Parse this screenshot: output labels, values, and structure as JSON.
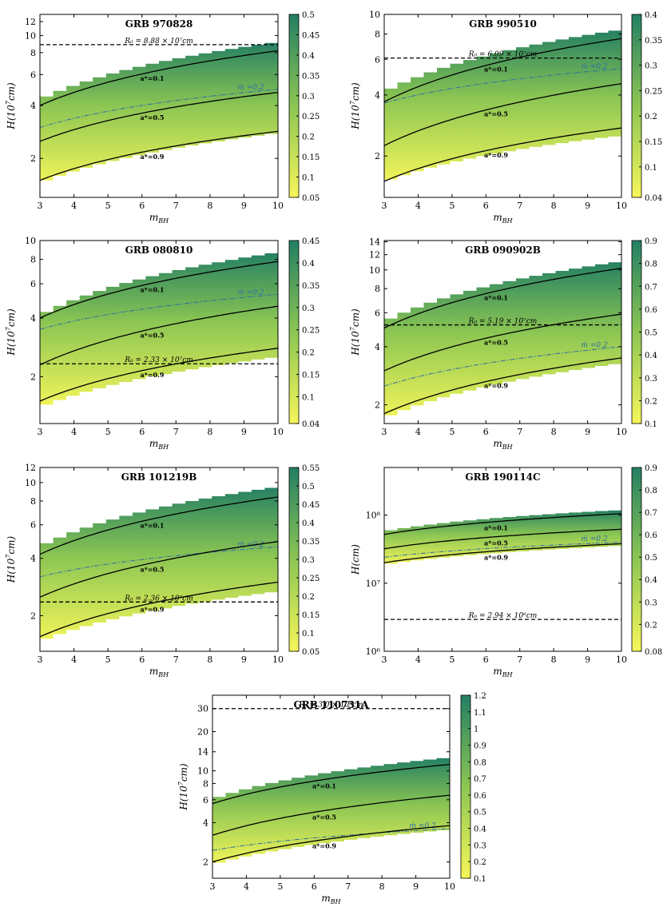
{
  "colors": {
    "high": "#237f63",
    "mid": "#8cc653",
    "low": "#f6f65a",
    "mdot_line": "#2e6da4"
  },
  "chart_data": [
    {
      "type": "area",
      "title": "GRB 970828",
      "xlabel": "m_BH",
      "ylabel": "H(10^7cm)",
      "xlim": [
        3,
        10
      ],
      "ylim": [
        1.2,
        13.2
      ],
      "yscale": "log",
      "yticks": [
        2,
        4,
        6,
        8,
        10,
        12
      ],
      "colorbar": {
        "min": 0.05,
        "max": 0.5,
        "ticks": [
          "0.05",
          "0.1",
          "0.15",
          "0.2",
          "0.25",
          "0.3",
          "0.35",
          "0.4",
          "0.45",
          "0.5"
        ]
      },
      "band": {
        "x": [
          3,
          10
        ],
        "top": [
          4.5,
          9.3
        ],
        "bottom": [
          1.4,
          2.75
        ]
      },
      "series": [
        {
          "name": "a*=0.1",
          "label": "a*=0.1",
          "y0": 4.0,
          "y1": 8.2,
          "lx": 6.3
        },
        {
          "name": "a*=0.5",
          "label": "a*=0.5",
          "y0": 2.5,
          "y1": 4.75,
          "lx": 6.3
        },
        {
          "name": "a*=0.9",
          "label": "a*=0.9",
          "y0": 1.5,
          "y1": 2.85,
          "lx": 6.3
        }
      ],
      "mdot": {
        "label": "ṁ =0.2",
        "y0": 3.0,
        "y1": 4.95,
        "lx": 9.2
      },
      "r0": {
        "value": 8.88,
        "label": "R₀ = 8.88 × 10⁷cm",
        "lx": 6.5
      }
    },
    {
      "type": "area",
      "title": "GRB 990510",
      "xlabel": "m_BH",
      "ylabel": "H(10^7cm)",
      "xlim": [
        3,
        10
      ],
      "ylim": [
        1.25,
        10
      ],
      "yscale": "log",
      "yticks": [
        2,
        4,
        6,
        8,
        10
      ],
      "colorbar": {
        "min": 0.04,
        "max": 0.4,
        "ticks": [
          "0.04",
          "0.1",
          "0.15",
          "0.2",
          "0.25",
          "0.3",
          "0.35",
          "0.4"
        ]
      },
      "band": {
        "x": [
          3,
          10
        ],
        "top": [
          4.3,
          8.5
        ],
        "bottom": [
          1.45,
          2.5
        ]
      },
      "series": [
        {
          "name": "a*=0.1",
          "label": "a*=0.1",
          "y0": 3.7,
          "y1": 7.6,
          "lx": 6.3
        },
        {
          "name": "a*=0.5",
          "label": "a*=0.5",
          "y0": 2.25,
          "y1": 4.55,
          "lx": 6.3
        },
        {
          "name": "a*=0.9",
          "label": "a*=0.9",
          "y0": 1.5,
          "y1": 2.75,
          "lx": 6.3
        }
      ],
      "mdot": {
        "label": "ṁ =0.2",
        "y0": 3.65,
        "y1": 5.4,
        "lx": 9.2
      },
      "r0": {
        "value": 6.09,
        "label": "R₀ = 6.09 × 10⁷cm",
        "lx": 6.5
      }
    },
    {
      "type": "area",
      "title": "GRB 080810",
      "xlabel": "m_BH",
      "ylabel": "H(10^7cm)",
      "xlim": [
        3,
        10
      ],
      "ylim": [
        1.15,
        10
      ],
      "yscale": "log",
      "yticks": [
        2,
        4,
        6,
        8,
        10
      ],
      "colorbar": {
        "min": 0.04,
        "max": 0.45,
        "ticks": [
          "0.04",
          "0.1",
          "0.15",
          "0.2",
          "0.25",
          "0.3",
          "0.35",
          "0.4",
          "0.45"
        ]
      },
      "band": {
        "x": [
          3,
          10
        ],
        "top": [
          4.3,
          8.8
        ],
        "bottom": [
          1.35,
          2.5
        ]
      },
      "series": [
        {
          "name": "a*=0.1",
          "label": "a*=0.1",
          "y0": 4.0,
          "y1": 7.8,
          "lx": 6.3
        },
        {
          "name": "a*=0.5",
          "label": "a*=0.5",
          "y0": 2.3,
          "y1": 4.6,
          "lx": 6.3
        },
        {
          "name": "a*=0.9",
          "label": "a*=0.9",
          "y0": 1.5,
          "y1": 2.8,
          "lx": 6.3
        }
      ],
      "mdot": {
        "label": "ṁ =0.2",
        "y0": 3.5,
        "y1": 5.3,
        "lx": 9.2
      },
      "r0": {
        "value": 2.33,
        "label": "R₀ = 2.33 × 10⁷cm",
        "lx": 6.5
      }
    },
    {
      "type": "area",
      "title": "GRB 090902B",
      "xlabel": "m_BH",
      "ylabel": "H(10^7cm)",
      "xlim": [
        3,
        10
      ],
      "ylim": [
        1.6,
        14.2
      ],
      "yscale": "log",
      "yticks": [
        2,
        4,
        6,
        8,
        10,
        12,
        14
      ],
      "colorbar": {
        "min": 0.1,
        "max": 0.9,
        "ticks": [
          "0.1",
          "0.2",
          "0.3",
          "0.4",
          "0.5",
          "0.6",
          "0.7",
          "0.8",
          "0.9"
        ]
      },
      "band": {
        "x": [
          3,
          10
        ],
        "top": [
          5.6,
          11.2
        ],
        "bottom": [
          1.65,
          3.25
        ]
      },
      "series": [
        {
          "name": "a*=0.1",
          "label": "a*=0.1",
          "y0": 5.0,
          "y1": 10.2,
          "lx": 6.3
        },
        {
          "name": "a*=0.5",
          "label": "a*=0.5",
          "y0": 3.0,
          "y1": 5.9,
          "lx": 6.3
        },
        {
          "name": "a*=0.9",
          "label": "a*=0.9",
          "y0": 1.8,
          "y1": 3.5,
          "lx": 6.3
        }
      ],
      "mdot": {
        "label": "ṁ =0.2",
        "y0": 2.5,
        "y1": 4.0,
        "lx": 9.2
      },
      "r0": {
        "value": 5.19,
        "label": "R₀ = 5.19 × 10⁷cm",
        "lx": 6.5
      }
    },
    {
      "type": "area",
      "title": "GRB 101219B",
      "xlabel": "m_BH",
      "ylabel": "H(10^7cm)",
      "xlim": [
        3,
        10
      ],
      "ylim": [
        1.3,
        12
      ],
      "yscale": "log",
      "yticks": [
        2,
        4,
        6,
        8,
        10,
        12
      ],
      "colorbar": {
        "min": 0.05,
        "max": 0.55,
        "ticks": [
          "0.05",
          "0.1",
          "0.15",
          "0.2",
          "0.25",
          "0.3",
          "0.35",
          "0.4",
          "0.45",
          "0.5",
          "0.55"
        ]
      },
      "band": {
        "x": [
          3,
          10
        ],
        "top": [
          4.8,
          9.6
        ],
        "bottom": [
          1.42,
          2.65
        ]
      },
      "series": [
        {
          "name": "a*=0.1",
          "label": "a*=0.1",
          "y0": 4.2,
          "y1": 8.4,
          "lx": 6.3
        },
        {
          "name": "a*=0.5",
          "label": "a*=0.5",
          "y0": 2.5,
          "y1": 4.9,
          "lx": 6.3
        },
        {
          "name": "a*=0.9",
          "label": "a*=0.9",
          "y0": 1.55,
          "y1": 3.0,
          "lx": 6.3
        }
      ],
      "mdot": {
        "label": "ṁ =0.2",
        "y0": 3.2,
        "y1": 4.6,
        "lx": 9.2
      },
      "r0": {
        "value": 2.36,
        "label": "R₀ = 2.36 × 10⁷cm",
        "lx": 6.5
      }
    },
    {
      "type": "area",
      "title": "GRB 190114C",
      "xlabel": "m_BH",
      "ylabel": "H(cm)",
      "xlim": [
        3,
        10
      ],
      "ylim": [
        1000000,
        500000000
      ],
      "yscale": "log",
      "yticks": [
        1000000,
        10000000,
        100000000
      ],
      "yticklabels": [
        "10⁶",
        "10⁷",
        "10⁸"
      ],
      "colorbar": {
        "min": 0.08,
        "max": 0.9,
        "ticks": [
          "0.08",
          "0.2",
          "0.3",
          "0.4",
          "0.5",
          "0.6",
          "0.7",
          "0.8",
          "0.9"
        ]
      },
      "band": {
        "x": [
          3,
          10
        ],
        "top": [
          60000000,
          120000000
        ],
        "bottom": [
          18000000,
          35000000
        ]
      },
      "series": [
        {
          "name": "a*=0.1",
          "label": "a*=0.1",
          "y0": 52000000,
          "y1": 105000000,
          "lx": 6.3
        },
        {
          "name": "a*=0.5",
          "label": "a*=0.5",
          "y0": 32000000,
          "y1": 62000000,
          "lx": 6.3
        },
        {
          "name": "a*=0.9",
          "label": "a*=0.9",
          "y0": 20000000,
          "y1": 38000000,
          "lx": 6.3
        }
      ],
      "mdot": {
        "label": "ṁ =0.2",
        "y0": 24000000,
        "y1": 40000000,
        "lx": 9.2
      },
      "r0": {
        "value": 2940000,
        "label": "R₀ = 2.94 × 10⁶cm",
        "lx": 6.5
      }
    },
    {
      "type": "area",
      "title": "GRB 110731A",
      "xlabel": "m_BH",
      "ylabel": "H(10^7cm)",
      "xlim": [
        3,
        10
      ],
      "ylim": [
        1.5,
        38
      ],
      "yscale": "log",
      "yticks": [
        2,
        4,
        6,
        8,
        10,
        14,
        20,
        30
      ],
      "colorbar": {
        "min": 0.1,
        "max": 1.2,
        "ticks": [
          "0.1",
          "0.2",
          "0.3",
          "0.4",
          "0.5",
          "0.6",
          "0.7",
          "0.8",
          "0.9",
          "1",
          "1.1",
          "1.2"
        ]
      },
      "band": {
        "x": [
          3,
          10
        ],
        "top": [
          6.3,
          12.8
        ],
        "bottom": [
          1.85,
          3.5
        ]
      },
      "series": [
        {
          "name": "a*=0.1",
          "label": "a*=0.1",
          "y0": 5.6,
          "y1": 11.2,
          "lx": 6.3
        },
        {
          "name": "a*=0.5",
          "label": "a*=0.5",
          "y0": 3.2,
          "y1": 6.5,
          "lx": 6.3
        },
        {
          "name": "a*=0.9",
          "label": "a*=0.9",
          "y0": 2.0,
          "y1": 3.8,
          "lx": 6.3
        }
      ],
      "mdot": {
        "label": "ṁ =0.2",
        "y0": 2.45,
        "y1": 3.6,
        "lx": 9.2
      },
      "r0": {
        "value": 30.0,
        "label": "R₀ = 3.0 × 10⁸cm",
        "lx": 6.5
      }
    }
  ]
}
